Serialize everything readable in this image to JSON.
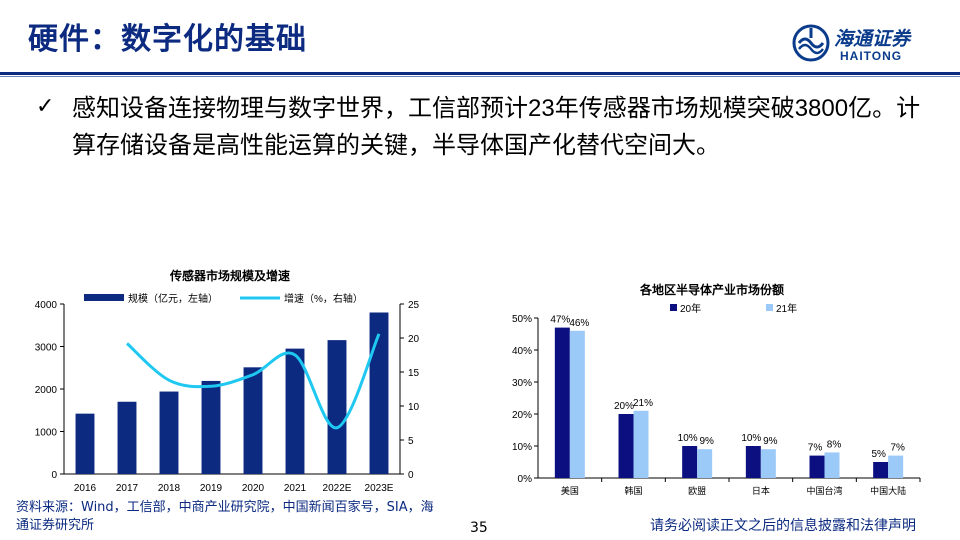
{
  "header": {
    "title": "硬件：数字化的基础",
    "logo_cn": "海通证券",
    "logo_en": "HAITONG"
  },
  "bullet": {
    "icon": "check-icon",
    "text": "感知设备连接物理与数字世界，工信部预计23年传感器市场规模突破3800亿。计算存储设备是高性能运算的关键，半导体国产化替代空间大。"
  },
  "chart_data": [
    {
      "type": "bar",
      "title": "传感器市场规模及增速",
      "categories": [
        "2016",
        "2017",
        "2018",
        "2019",
        "2020",
        "2021",
        "2022E",
        "2023E"
      ],
      "series": [
        {
          "name": "规模（亿元，左轴）",
          "type": "bar",
          "axis": "left",
          "values": [
            1420,
            1700,
            1940,
            2190,
            2510,
            2950,
            3150,
            3800
          ]
        },
        {
          "name": "增速（%，右轴）",
          "type": "line",
          "axis": "right",
          "values": [
            null,
            19.2,
            13.8,
            12.9,
            14.6,
            17.5,
            6.8,
            20.6
          ]
        }
      ],
      "ylim_left": [
        0,
        4000
      ],
      "ylim_right": [
        0,
        25
      ],
      "left_ticks": [
        "0",
        "1000",
        "2000",
        "3000",
        "4000"
      ],
      "right_ticks": [
        "0",
        "5",
        "10",
        "15",
        "20",
        "25"
      ],
      "legend_position": "top",
      "grid": false,
      "colors": {
        "bar": "#0b2a80",
        "line": "#1ec8f0"
      }
    },
    {
      "type": "bar",
      "title": "各地区半导体产业市场份额",
      "categories": [
        "美国",
        "韩国",
        "欧盟",
        "日本",
        "中国台湾",
        "中国大陆"
      ],
      "series": [
        {
          "name": "20年",
          "values": [
            47,
            20,
            10,
            10,
            7,
            5
          ],
          "labels": [
            "47%",
            "20%",
            "10%",
            "10%",
            "7%",
            "5%"
          ]
        },
        {
          "name": "21年",
          "values": [
            46,
            21,
            9,
            9,
            8,
            7
          ],
          "labels": [
            "46%",
            "21%",
            "9%",
            "9%",
            "8%",
            "7%"
          ]
        }
      ],
      "ylim": [
        0,
        50
      ],
      "y_ticks": [
        "0%",
        "10%",
        "20%",
        "30%",
        "40%",
        "50%"
      ],
      "legend_position": "top",
      "grid": false,
      "colors": {
        "series1": "#0b0f80",
        "series2": "#9ccaf8"
      }
    }
  ],
  "footer": {
    "source": "资料来源：Wind，工信部，中商产业研究院，中国新闻百家号，SIA，海通证券研究所",
    "page_number": "35",
    "disclaimer": "请务必阅读正文之后的信息披露和法律声明"
  }
}
